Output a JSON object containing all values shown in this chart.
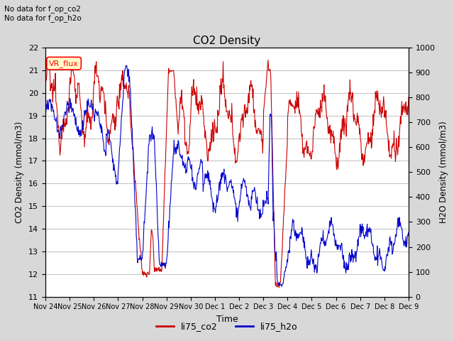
{
  "title": "CO2 Density",
  "xlabel": "Time",
  "ylabel_left": "CO2 Density (mmol/m3)",
  "ylabel_right": "H2O Density (mmol/m3)",
  "ylim_left": [
    11.0,
    22.0
  ],
  "ylim_right": [
    0,
    1000
  ],
  "yticks_left": [
    11.0,
    12.0,
    13.0,
    14.0,
    15.0,
    16.0,
    17.0,
    18.0,
    19.0,
    20.0,
    21.0,
    22.0
  ],
  "yticks_right": [
    0,
    100,
    200,
    300,
    400,
    500,
    600,
    700,
    800,
    900,
    1000
  ],
  "annotation_text": "No data for f_op_co2\nNo data for f_op_h2o",
  "vr_flux_label": "VR_flux",
  "legend_entries": [
    "li75_co2",
    "li75_h2o"
  ],
  "legend_colors": [
    "#cc0000",
    "#0000cc"
  ],
  "co2_color": "#cc0000",
  "h2o_color": "#0000cc",
  "background_color": "#d8d8d8",
  "plot_bg_color": "#ffffff",
  "grid_color": "#c0c0c0",
  "xtick_labels": [
    "Nov 24",
    "Nov 25",
    "Nov 26",
    "Nov 27",
    "Nov 28",
    "Nov 29",
    "Nov 30",
    "Dec 1",
    "Dec 2",
    "Dec 3",
    "Dec 4",
    "Dec 5",
    "Dec 6",
    "Dec 7",
    "Dec 8",
    "Dec 9"
  ],
  "num_points": 800
}
